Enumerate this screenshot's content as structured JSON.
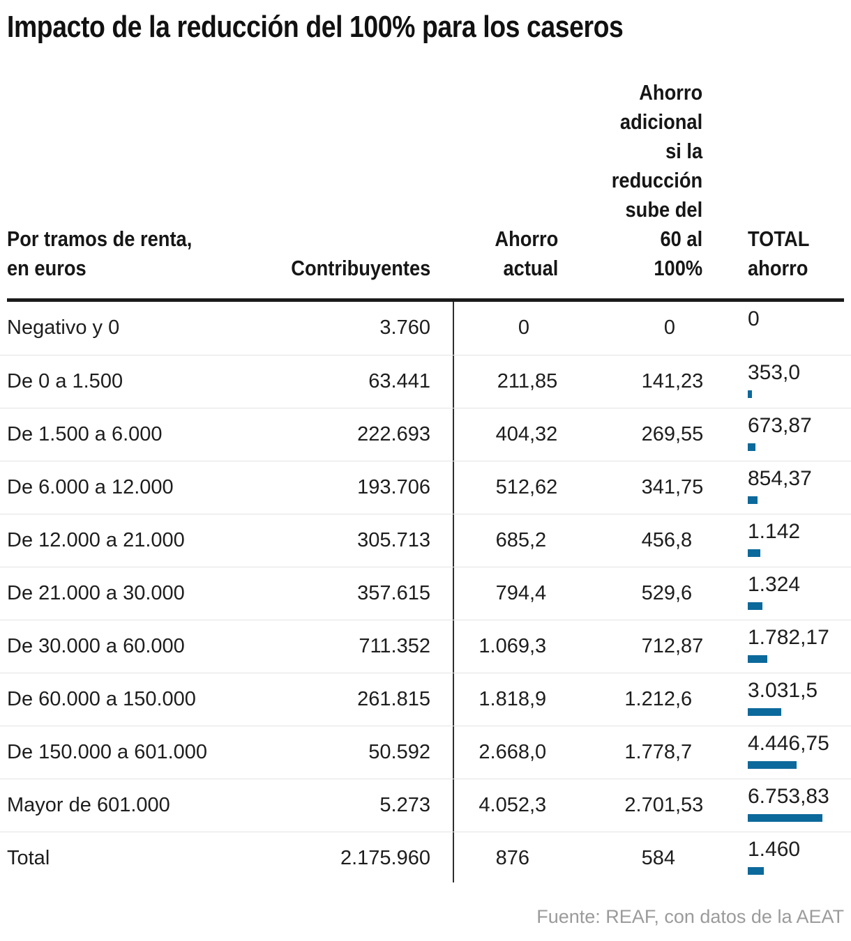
{
  "title": "Impacto de la reducción del 100% para los caseros",
  "accent_color": "#0c699b",
  "source_note": "Fuente: REAF, con datos de la AEAT",
  "table": {
    "columns": {
      "c1": "Por tramos de renta,\nen euros",
      "c2": "Contribuyentes",
      "c3": "Ahorro\nactual",
      "c4": "Ahorro\nadicional\nsi la\nreducción\nsube del\n60 al\n100%",
      "c5": "TOTAL\nahorro"
    },
    "rows": [
      {
        "label": "Negativo y 0",
        "contribuyentes": "3.760",
        "ahorro_actual": "0",
        "ahorro_adicional": "0",
        "total": "0",
        "total_value": 0
      },
      {
        "label": "De 0 a 1.500",
        "contribuyentes": "63.441",
        "ahorro_actual": "211,85",
        "ahorro_adicional": "141,23",
        "total": "353,0",
        "total_value": 353.0
      },
      {
        "label": "De 1.500 a 6.000",
        "contribuyentes": "222.693",
        "ahorro_actual": "404,32",
        "ahorro_adicional": "269,55",
        "total": "673,87",
        "total_value": 673.87
      },
      {
        "label": "De 6.000 a 12.000",
        "contribuyentes": "193.706",
        "ahorro_actual": "512,62",
        "ahorro_adicional": "341,75",
        "total": "854,37",
        "total_value": 854.37
      },
      {
        "label": "De 12.000 a 21.000",
        "contribuyentes": "305.713",
        "ahorro_actual": "685,2",
        "ahorro_adicional": "456,8",
        "total": "1.142",
        "total_value": 1142
      },
      {
        "label": "De 21.000 a 30.000",
        "contribuyentes": "357.615",
        "ahorro_actual": "794,4",
        "ahorro_adicional": "529,6",
        "total": "1.324",
        "total_value": 1324
      },
      {
        "label": "De 30.000 a 60.000",
        "contribuyentes": "711.352",
        "ahorro_actual": "1.069,3",
        "ahorro_adicional": "712,87",
        "total": "1.782,17",
        "total_value": 1782.17
      },
      {
        "label": "De 60.000 a 150.000",
        "contribuyentes": "261.815",
        "ahorro_actual": "1.818,9",
        "ahorro_adicional": "1.212,6",
        "total": "3.031,5",
        "total_value": 3031.5
      },
      {
        "label": "De 150.000 a 601.000",
        "contribuyentes": "50.592",
        "ahorro_actual": "2.668,0",
        "ahorro_adicional": "1.778,7",
        "total": "4.446,75",
        "total_value": 4446.75
      },
      {
        "label": "Mayor de 601.000",
        "contribuyentes": "5.273",
        "ahorro_actual": "4.052,3",
        "ahorro_adicional": "2.701,53",
        "total": "6.753,83",
        "total_value": 6753.83
      },
      {
        "label": "Total",
        "contribuyentes": "2.175.960",
        "ahorro_actual": "876",
        "ahorro_adicional": "584",
        "total": "1.460",
        "total_value": 1460
      }
    ]
  },
  "chart_data": {
    "type": "table",
    "title": "Impacto de la reducción del 100% para los caseros",
    "columns": [
      "Por tramos de renta, en euros",
      "Contribuyentes",
      "Ahorro actual",
      "Ahorro adicional si la reducción sube del 60 al 100%",
      "TOTAL ahorro"
    ],
    "categories": [
      "Negativo y 0",
      "De 0 a 1.500",
      "De 1.500 a 6.000",
      "De 6.000 a 12.000",
      "De 12.000 a 21.000",
      "De 21.000 a 30.000",
      "De 30.000 a 60.000",
      "De 60.000 a 150.000",
      "De 150.000 a 601.000",
      "Mayor de 601.000",
      "Total"
    ],
    "series": [
      {
        "name": "Contribuyentes",
        "values": [
          3760,
          63441,
          222693,
          193706,
          305713,
          357615,
          711352,
          261815,
          50592,
          5273,
          2175960
        ]
      },
      {
        "name": "Ahorro actual",
        "values": [
          0,
          211.85,
          404.32,
          512.62,
          685.2,
          794.4,
          1069.3,
          1818.9,
          2668.0,
          4052.3,
          876
        ]
      },
      {
        "name": "Ahorro adicional si la reducción sube del 60 al 100%",
        "values": [
          0,
          141.23,
          269.55,
          341.75,
          456.8,
          529.6,
          712.87,
          1212.6,
          1778.7,
          2701.53,
          584
        ]
      },
      {
        "name": "TOTAL ahorro (bar)",
        "values": [
          0,
          353.0,
          673.87,
          854.37,
          1142,
          1324,
          1782.17,
          3031.5,
          4446.75,
          6753.83,
          1460
        ]
      }
    ],
    "bar_color": "#0c699b",
    "legend_position": "none",
    "grid": "horizontal-row-separators",
    "source": "Fuente: REAF, con datos de la AEAT"
  }
}
